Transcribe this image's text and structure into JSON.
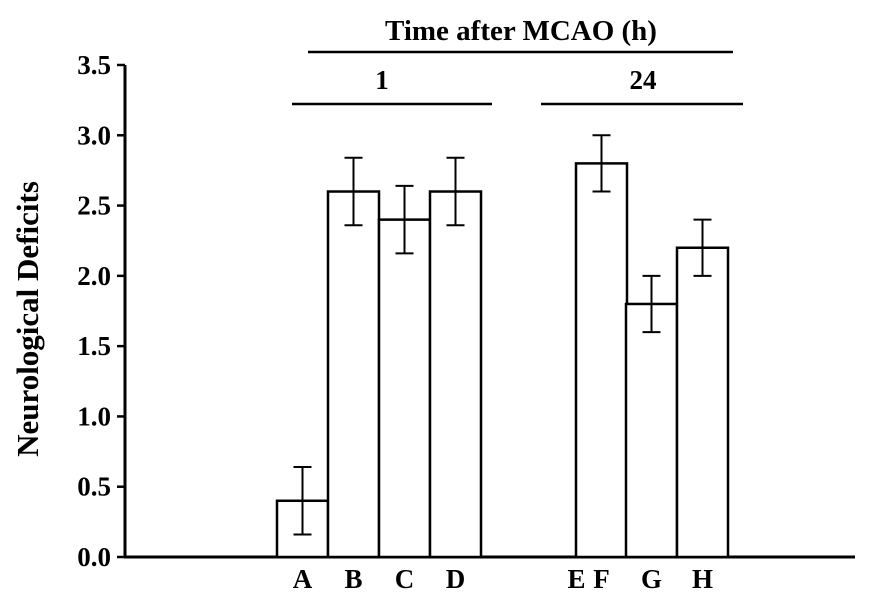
{
  "chart_data": {
    "type": "bar",
    "title": "",
    "xlabel": "",
    "ylabel": "Neurological Deficits",
    "ylim": [
      0,
      3.5
    ],
    "y_ticks": [
      "0.0",
      "0.5",
      "1.0",
      "1.5",
      "2.0",
      "2.5",
      "3.0",
      "3.5"
    ],
    "grid": false,
    "categories": [
      "A",
      "B",
      "C",
      "D",
      "E",
      "F",
      "G",
      "H"
    ],
    "values": [
      0.4,
      2.6,
      2.4,
      2.6,
      0.0,
      2.8,
      1.8,
      2.2
    ],
    "errors": [
      0.24,
      0.24,
      0.24,
      0.24,
      0.0,
      0.2,
      0.2,
      0.2
    ],
    "groups": {
      "overall_label": "Time after MCAO (h)",
      "items": [
        {
          "label": "1",
          "categories": [
            "A",
            "B",
            "C",
            "D"
          ]
        },
        {
          "label": "24",
          "categories": [
            "E",
            "F",
            "G",
            "H"
          ]
        }
      ]
    }
  },
  "colors": {
    "bar_fill": "#ffffff",
    "stroke": "#000000",
    "background": "#ffffff"
  }
}
